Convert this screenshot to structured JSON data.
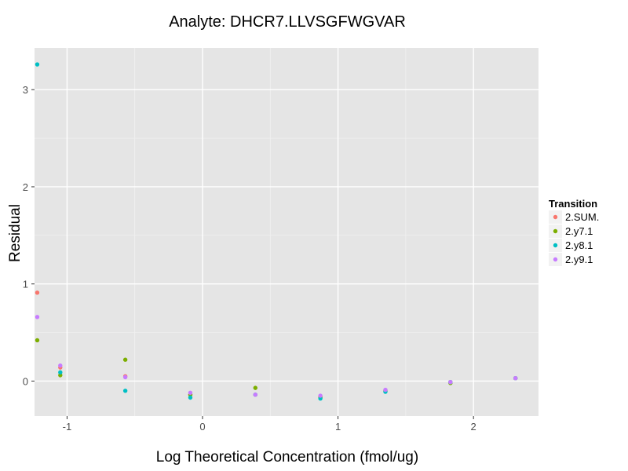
{
  "chart_data": {
    "type": "scatter",
    "title": "Analyte: DHCR7.LLVSGFWGVAR",
    "xlabel": "Log Theoretical Concentration (fmol/ug)",
    "ylabel": "Residual",
    "xlim": [
      -1.24,
      2.48
    ],
    "ylim": [
      -0.36,
      3.43
    ],
    "x_ticks": [
      -1,
      0,
      1,
      2
    ],
    "y_ticks": [
      0,
      1,
      2,
      3
    ],
    "grid": true,
    "legend": {
      "title": "Transition",
      "position": "right"
    },
    "series": [
      {
        "name": "2.SUM.",
        "color": "#F8766D",
        "points": [
          [
            -1.22,
            0.91
          ],
          [
            -1.05,
            0.14
          ],
          [
            -0.57,
            0.05
          ],
          [
            -0.09,
            -0.14
          ],
          [
            0.39,
            -0.14
          ],
          [
            0.87,
            -0.16
          ],
          [
            1.35,
            -0.1
          ],
          [
            1.83,
            -0.01
          ],
          [
            2.31,
            0.03
          ]
        ]
      },
      {
        "name": "2.y7.1",
        "color": "#7CAE00",
        "points": [
          [
            -1.22,
            0.42
          ],
          [
            -1.05,
            0.06
          ],
          [
            -0.57,
            0.22
          ],
          [
            -0.09,
            -0.14
          ],
          [
            0.39,
            -0.07
          ],
          [
            0.87,
            -0.17
          ],
          [
            1.35,
            -0.1
          ],
          [
            1.83,
            -0.02
          ],
          [
            2.31,
            0.03
          ]
        ]
      },
      {
        "name": "2.y8.1",
        "color": "#00BFC4",
        "points": [
          [
            -1.22,
            3.26
          ],
          [
            -1.05,
            0.09
          ],
          [
            -0.57,
            -0.1
          ],
          [
            -0.09,
            -0.17
          ],
          [
            0.39,
            -0.14
          ],
          [
            0.87,
            -0.18
          ],
          [
            1.35,
            -0.11
          ],
          [
            1.83,
            -0.01
          ],
          [
            2.31,
            0.03
          ]
        ]
      },
      {
        "name": "2.y9.1",
        "color": "#C77CFF",
        "points": [
          [
            -1.22,
            0.66
          ],
          [
            -1.05,
            0.16
          ],
          [
            -0.57,
            0.04
          ],
          [
            -0.09,
            -0.12
          ],
          [
            0.39,
            -0.14
          ],
          [
            0.87,
            -0.15
          ],
          [
            1.35,
            -0.09
          ],
          [
            1.83,
            -0.01
          ],
          [
            2.31,
            0.03
          ]
        ]
      }
    ]
  }
}
